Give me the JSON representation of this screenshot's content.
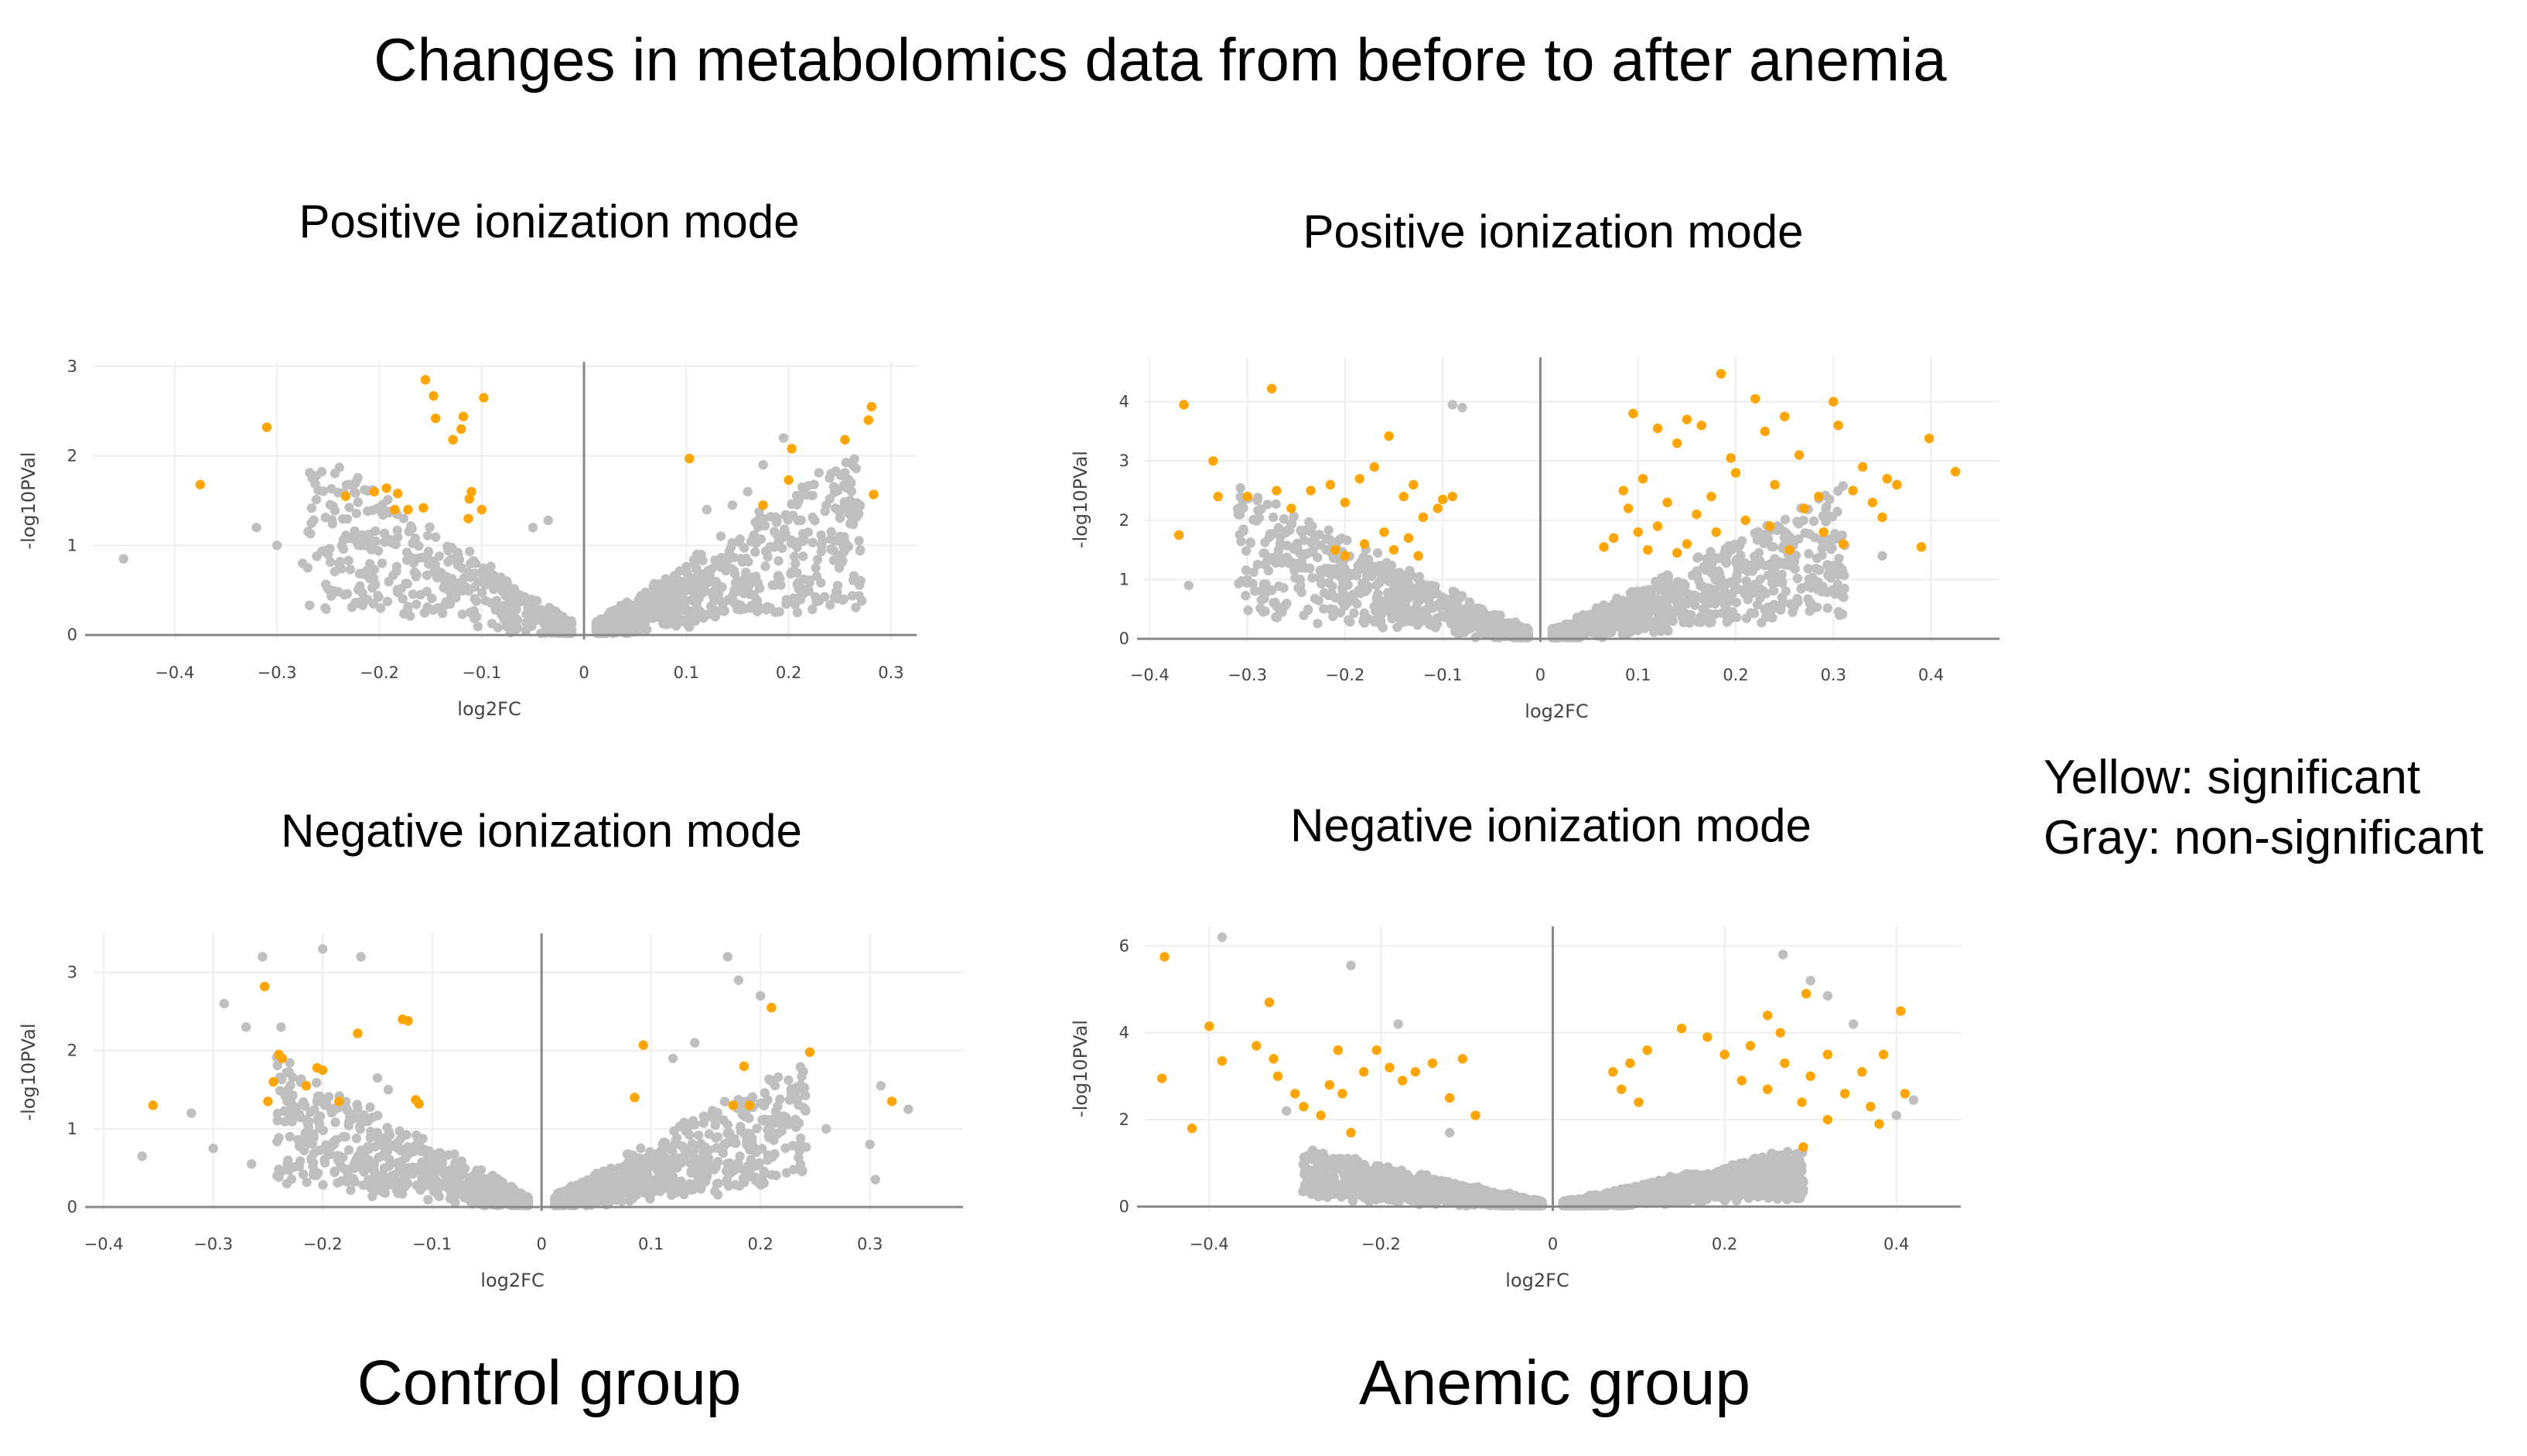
{
  "title": "Changes in metabolomics data from before to after anemia",
  "groups": {
    "control": "Control group",
    "anemic": "Anemic group"
  },
  "legend": {
    "significant": "Yellow: significant",
    "nonsignificant": "Gray: non-significant"
  },
  "colors": {
    "significant": "#FFA500",
    "nonsignificant": "#BFBFBF",
    "axis": "#888888",
    "grid": "#EEEEEE"
  },
  "chart_data": [
    {
      "type": "scatter",
      "title": "Positive ionization mode",
      "group": "Control group",
      "xlabel": "log2FC",
      "ylabel": "-log10PVal",
      "xlim": [
        -0.48,
        0.325
      ],
      "ylim": [
        -0.05,
        3.05
      ],
      "xticks": [
        -0.4,
        -0.3,
        -0.2,
        -0.1,
        0,
        0.1,
        0.2,
        0.3
      ],
      "yticks": [
        0,
        1,
        2,
        3
      ],
      "grid": true,
      "significant_points": [
        {
          "x": -0.375,
          "y": 1.68
        },
        {
          "x": -0.31,
          "y": 2.32
        },
        {
          "x": -0.233,
          "y": 1.55
        },
        {
          "x": -0.205,
          "y": 1.6
        },
        {
          "x": -0.193,
          "y": 1.64
        },
        {
          "x": -0.182,
          "y": 1.58
        },
        {
          "x": -0.172,
          "y": 1.4
        },
        {
          "x": -0.185,
          "y": 1.4
        },
        {
          "x": -0.157,
          "y": 1.42
        },
        {
          "x": -0.155,
          "y": 2.85
        },
        {
          "x": -0.147,
          "y": 2.67
        },
        {
          "x": -0.145,
          "y": 2.42
        },
        {
          "x": -0.128,
          "y": 2.18
        },
        {
          "x": -0.12,
          "y": 2.3
        },
        {
          "x": -0.118,
          "y": 2.44
        },
        {
          "x": -0.11,
          "y": 1.6
        },
        {
          "x": -0.112,
          "y": 1.52
        },
        {
          "x": -0.1,
          "y": 1.4
        },
        {
          "x": -0.098,
          "y": 2.65
        },
        {
          "x": -0.113,
          "y": 1.3
        },
        {
          "x": 0.103,
          "y": 1.97
        },
        {
          "x": 0.175,
          "y": 1.45
        },
        {
          "x": 0.2,
          "y": 1.73
        },
        {
          "x": 0.203,
          "y": 2.08
        },
        {
          "x": 0.255,
          "y": 2.18
        },
        {
          "x": 0.278,
          "y": 2.4
        },
        {
          "x": 0.281,
          "y": 2.55
        },
        {
          "x": 0.283,
          "y": 1.57
        }
      ],
      "nonsignificant_points": [
        {
          "x": -0.45,
          "y": 0.85
        },
        {
          "x": -0.32,
          "y": 1.2
        },
        {
          "x": -0.3,
          "y": 1.0
        },
        {
          "x": -0.275,
          "y": 0.8
        },
        {
          "x": -0.27,
          "y": 0.75
        },
        {
          "x": -0.25,
          "y": 0.9
        },
        {
          "x": -0.035,
          "y": 1.28
        },
        {
          "x": -0.05,
          "y": 1.2
        },
        {
          "x": 0.12,
          "y": 1.4
        },
        {
          "x": 0.145,
          "y": 1.45
        },
        {
          "x": 0.16,
          "y": 1.6
        },
        {
          "x": 0.175,
          "y": 1.9
        },
        {
          "x": 0.195,
          "y": 2.2
        },
        {
          "x": 0.21,
          "y": 1.5
        },
        {
          "x": 0.25,
          "y": 1.1
        },
        {
          "x": 0.27,
          "y": 0.95
        }
      ],
      "cloud": {
        "x_spread": 0.26,
        "y_rate": 6.5,
        "n_left": 450,
        "n_right": 650
      }
    },
    {
      "type": "scatter",
      "title": "Positive ionization mode",
      "group": "Anemic group",
      "xlabel": "log2FC",
      "ylabel": "-log10PVal",
      "xlim": [
        -0.405,
        0.47
      ],
      "ylim": [
        -0.05,
        4.75
      ],
      "xticks": [
        -0.4,
        -0.3,
        -0.2,
        -0.1,
        0,
        0.1,
        0.2,
        0.3,
        0.4
      ],
      "yticks": [
        0,
        1,
        2,
        3,
        4
      ],
      "grid": true,
      "significant_points": [
        {
          "x": -0.365,
          "y": 3.95
        },
        {
          "x": -0.275,
          "y": 4.22
        },
        {
          "x": -0.335,
          "y": 3.0
        },
        {
          "x": -0.37,
          "y": 1.75
        },
        {
          "x": -0.33,
          "y": 2.4
        },
        {
          "x": -0.3,
          "y": 2.4
        },
        {
          "x": -0.27,
          "y": 2.5
        },
        {
          "x": -0.255,
          "y": 2.2
        },
        {
          "x": -0.235,
          "y": 2.5
        },
        {
          "x": -0.215,
          "y": 2.6
        },
        {
          "x": -0.2,
          "y": 2.3
        },
        {
          "x": -0.185,
          "y": 2.7
        },
        {
          "x": -0.17,
          "y": 2.9
        },
        {
          "x": -0.155,
          "y": 3.42
        },
        {
          "x": -0.14,
          "y": 2.4
        },
        {
          "x": -0.13,
          "y": 2.6
        },
        {
          "x": -0.12,
          "y": 2.05
        },
        {
          "x": -0.105,
          "y": 2.2
        },
        {
          "x": -0.1,
          "y": 2.35
        },
        {
          "x": -0.09,
          "y": 2.4
        },
        {
          "x": -0.16,
          "y": 1.8
        },
        {
          "x": -0.18,
          "y": 1.6
        },
        {
          "x": -0.2,
          "y": 1.4
        },
        {
          "x": -0.15,
          "y": 1.5
        },
        {
          "x": -0.135,
          "y": 1.7
        },
        {
          "x": -0.125,
          "y": 1.4
        },
        {
          "x": -0.21,
          "y": 1.5
        },
        {
          "x": 0.095,
          "y": 3.8
        },
        {
          "x": 0.12,
          "y": 3.55
        },
        {
          "x": 0.14,
          "y": 3.3
        },
        {
          "x": 0.15,
          "y": 3.7
        },
        {
          "x": 0.165,
          "y": 3.6
        },
        {
          "x": 0.185,
          "y": 4.47
        },
        {
          "x": 0.22,
          "y": 4.05
        },
        {
          "x": 0.23,
          "y": 3.5
        },
        {
          "x": 0.25,
          "y": 3.75
        },
        {
          "x": 0.265,
          "y": 3.1
        },
        {
          "x": 0.3,
          "y": 4.0
        },
        {
          "x": 0.305,
          "y": 3.6
        },
        {
          "x": 0.33,
          "y": 2.9
        },
        {
          "x": 0.355,
          "y": 2.7
        },
        {
          "x": 0.365,
          "y": 2.6
        },
        {
          "x": 0.398,
          "y": 3.38
        },
        {
          "x": 0.425,
          "y": 2.82
        },
        {
          "x": 0.39,
          "y": 1.55
        },
        {
          "x": 0.35,
          "y": 2.05
        },
        {
          "x": 0.34,
          "y": 2.3
        },
        {
          "x": 0.32,
          "y": 2.5
        },
        {
          "x": 0.31,
          "y": 1.6
        },
        {
          "x": 0.29,
          "y": 1.8
        },
        {
          "x": 0.27,
          "y": 2.2
        },
        {
          "x": 0.255,
          "y": 1.5
        },
        {
          "x": 0.24,
          "y": 2.6
        },
        {
          "x": 0.21,
          "y": 2.0
        },
        {
          "x": 0.2,
          "y": 2.8
        },
        {
          "x": 0.195,
          "y": 3.05
        },
        {
          "x": 0.18,
          "y": 1.8
        },
        {
          "x": 0.175,
          "y": 2.4
        },
        {
          "x": 0.16,
          "y": 2.1
        },
        {
          "x": 0.15,
          "y": 1.6
        },
        {
          "x": 0.14,
          "y": 1.45
        },
        {
          "x": 0.13,
          "y": 2.3
        },
        {
          "x": 0.12,
          "y": 1.9
        },
        {
          "x": 0.11,
          "y": 1.5
        },
        {
          "x": 0.1,
          "y": 1.8
        },
        {
          "x": 0.09,
          "y": 2.2
        },
        {
          "x": 0.075,
          "y": 1.7
        },
        {
          "x": 0.065,
          "y": 1.55
        },
        {
          "x": 0.105,
          "y": 2.7
        },
        {
          "x": 0.085,
          "y": 2.5
        },
        {
          "x": 0.235,
          "y": 1.9
        },
        {
          "x": 0.285,
          "y": 2.4
        }
      ],
      "nonsignificant_points": [
        {
          "x": -0.09,
          "y": 3.95
        },
        {
          "x": -0.08,
          "y": 3.9
        },
        {
          "x": -0.36,
          "y": 0.9
        },
        {
          "x": -0.3,
          "y": 1.0
        },
        {
          "x": -0.28,
          "y": 1.3
        },
        {
          "x": -0.245,
          "y": 1.2
        },
        {
          "x": 0.35,
          "y": 1.4
        },
        {
          "x": 0.3,
          "y": 1.2
        },
        {
          "x": 0.26,
          "y": 1.3
        },
        {
          "x": 0.24,
          "y": 1.35
        },
        {
          "x": 0.2,
          "y": 1.3
        },
        {
          "x": 0.17,
          "y": 1.35
        }
      ],
      "cloud": {
        "x_spread": 0.3,
        "y_rate": 7.0,
        "n_left": 650,
        "n_right": 750
      }
    },
    {
      "type": "scatter",
      "title": "Negative ionization mode",
      "group": "Control group",
      "xlabel": "log2FC",
      "ylabel": "-log10PVal",
      "xlim": [
        -0.41,
        0.385
      ],
      "ylim": [
        -0.05,
        3.5
      ],
      "xticks": [
        -0.4,
        -0.3,
        -0.2,
        -0.1,
        0,
        0.1,
        0.2,
        0.3
      ],
      "yticks": [
        0,
        1,
        2,
        3
      ],
      "grid": true,
      "significant_points": [
        {
          "x": -0.355,
          "y": 1.3
        },
        {
          "x": -0.253,
          "y": 2.82
        },
        {
          "x": -0.245,
          "y": 1.6
        },
        {
          "x": -0.25,
          "y": 1.35
        },
        {
          "x": -0.24,
          "y": 1.95
        },
        {
          "x": -0.237,
          "y": 1.9
        },
        {
          "x": -0.215,
          "y": 1.55
        },
        {
          "x": -0.205,
          "y": 1.78
        },
        {
          "x": -0.2,
          "y": 1.75
        },
        {
          "x": -0.185,
          "y": 1.35
        },
        {
          "x": -0.168,
          "y": 2.22
        },
        {
          "x": -0.127,
          "y": 2.4
        },
        {
          "x": -0.122,
          "y": 2.38
        },
        {
          "x": -0.115,
          "y": 1.37
        },
        {
          "x": -0.112,
          "y": 1.32
        },
        {
          "x": 0.093,
          "y": 2.07
        },
        {
          "x": 0.085,
          "y": 1.4
        },
        {
          "x": 0.175,
          "y": 1.3
        },
        {
          "x": 0.185,
          "y": 1.8
        },
        {
          "x": 0.19,
          "y": 1.3
        },
        {
          "x": 0.21,
          "y": 2.55
        },
        {
          "x": 0.245,
          "y": 1.98
        },
        {
          "x": 0.32,
          "y": 1.35
        }
      ],
      "nonsignificant_points": [
        {
          "x": -0.365,
          "y": 0.65
        },
        {
          "x": -0.32,
          "y": 1.2
        },
        {
          "x": -0.3,
          "y": 0.75
        },
        {
          "x": -0.29,
          "y": 2.6
        },
        {
          "x": -0.255,
          "y": 3.2
        },
        {
          "x": -0.265,
          "y": 0.55
        },
        {
          "x": -0.27,
          "y": 2.3
        },
        {
          "x": -0.238,
          "y": 2.3
        },
        {
          "x": -0.23,
          "y": 0.9
        },
        {
          "x": -0.2,
          "y": 3.3
        },
        {
          "x": -0.165,
          "y": 3.2
        },
        {
          "x": -0.15,
          "y": 1.65
        },
        {
          "x": -0.14,
          "y": 1.5
        },
        {
          "x": 0.17,
          "y": 3.2
        },
        {
          "x": 0.18,
          "y": 2.9
        },
        {
          "x": 0.2,
          "y": 2.7
        },
        {
          "x": 0.14,
          "y": 2.1
        },
        {
          "x": 0.12,
          "y": 1.9
        },
        {
          "x": 0.23,
          "y": 1.4
        },
        {
          "x": 0.26,
          "y": 1.0
        },
        {
          "x": 0.31,
          "y": 1.55
        },
        {
          "x": 0.335,
          "y": 1.25
        },
        {
          "x": 0.3,
          "y": 0.8
        },
        {
          "x": 0.305,
          "y": 0.35
        }
      ],
      "cloud": {
        "x_spread": 0.23,
        "y_rate": 6.5,
        "n_left": 600,
        "n_right": 650
      }
    },
    {
      "type": "scatter",
      "title": "Negative ionization mode",
      "group": "Anemic group",
      "xlabel": "log2FC",
      "ylabel": "-log10PVal",
      "xlim": [
        -0.475,
        0.475
      ],
      "ylim": [
        -0.1,
        6.45
      ],
      "xticks": [
        -0.4,
        -0.2,
        0,
        0.2,
        0.4
      ],
      "yticks": [
        0,
        2,
        4,
        6
      ],
      "grid": true,
      "significant_points": [
        {
          "x": -0.452,
          "y": 5.75
        },
        {
          "x": -0.455,
          "y": 2.95
        },
        {
          "x": -0.42,
          "y": 1.8
        },
        {
          "x": -0.4,
          "y": 4.15
        },
        {
          "x": -0.385,
          "y": 3.35
        },
        {
          "x": -0.345,
          "y": 3.7
        },
        {
          "x": -0.33,
          "y": 4.7
        },
        {
          "x": -0.325,
          "y": 3.4
        },
        {
          "x": -0.32,
          "y": 3.0
        },
        {
          "x": -0.3,
          "y": 2.6
        },
        {
          "x": -0.29,
          "y": 2.3
        },
        {
          "x": -0.27,
          "y": 2.1
        },
        {
          "x": -0.26,
          "y": 2.8
        },
        {
          "x": -0.245,
          "y": 2.6
        },
        {
          "x": -0.22,
          "y": 3.1
        },
        {
          "x": -0.205,
          "y": 3.6
        },
        {
          "x": -0.19,
          "y": 3.2
        },
        {
          "x": -0.175,
          "y": 2.9
        },
        {
          "x": -0.16,
          "y": 3.1
        },
        {
          "x": -0.14,
          "y": 3.3
        },
        {
          "x": -0.12,
          "y": 2.5
        },
        {
          "x": -0.105,
          "y": 3.4
        },
        {
          "x": -0.09,
          "y": 2.1
        },
        {
          "x": -0.25,
          "y": 3.6
        },
        {
          "x": -0.235,
          "y": 1.7
        },
        {
          "x": 0.07,
          "y": 3.1
        },
        {
          "x": 0.09,
          "y": 3.3
        },
        {
          "x": 0.11,
          "y": 3.6
        },
        {
          "x": 0.15,
          "y": 4.1
        },
        {
          "x": 0.18,
          "y": 3.9
        },
        {
          "x": 0.2,
          "y": 3.5
        },
        {
          "x": 0.23,
          "y": 3.7
        },
        {
          "x": 0.25,
          "y": 4.4
        },
        {
          "x": 0.265,
          "y": 4.0
        },
        {
          "x": 0.295,
          "y": 4.9
        },
        {
          "x": 0.27,
          "y": 3.3
        },
        {
          "x": 0.3,
          "y": 3.0
        },
        {
          "x": 0.32,
          "y": 3.5
        },
        {
          "x": 0.34,
          "y": 2.6
        },
        {
          "x": 0.36,
          "y": 3.1
        },
        {
          "x": 0.37,
          "y": 2.3
        },
        {
          "x": 0.385,
          "y": 3.5
        },
        {
          "x": 0.38,
          "y": 1.9
        },
        {
          "x": 0.405,
          "y": 4.5
        },
        {
          "x": 0.41,
          "y": 2.6
        },
        {
          "x": 0.32,
          "y": 2.0
        },
        {
          "x": 0.29,
          "y": 2.4
        },
        {
          "x": 0.25,
          "y": 2.7
        },
        {
          "x": 0.22,
          "y": 2.9
        },
        {
          "x": 0.08,
          "y": 2.7
        },
        {
          "x": 0.1,
          "y": 2.4
        }
      ],
      "nonsignificant_points": [
        {
          "x": -0.385,
          "y": 6.2
        },
        {
          "x": -0.235,
          "y": 5.55
        },
        {
          "x": 0.268,
          "y": 5.8
        },
        {
          "x": 0.3,
          "y": 5.2
        },
        {
          "x": 0.32,
          "y": 4.85
        },
        {
          "x": 0.35,
          "y": 4.2
        },
        {
          "x": 0.42,
          "y": 2.45
        },
        {
          "x": 0.4,
          "y": 2.1
        },
        {
          "x": -0.31,
          "y": 2.2
        },
        {
          "x": -0.18,
          "y": 4.2
        },
        {
          "x": -0.12,
          "y": 1.7
        }
      ],
      "cloud": {
        "x_spread": 0.28,
        "y_rate": 3.8,
        "n_left": 1100,
        "n_right": 1300,
        "sig_threshold": 1.3
      }
    }
  ]
}
